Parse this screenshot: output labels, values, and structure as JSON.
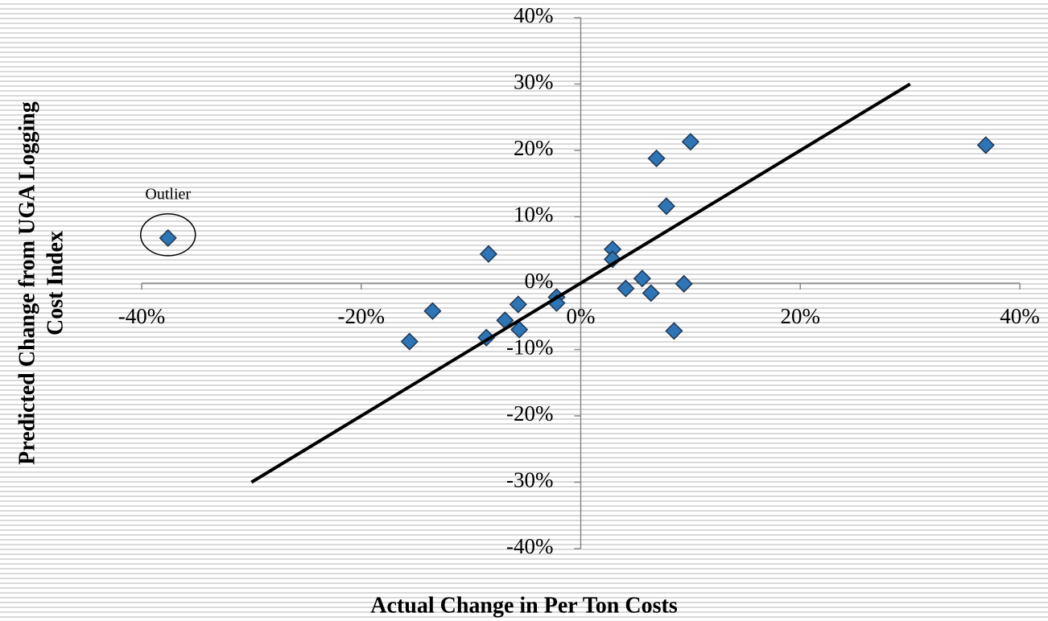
{
  "chart_data": {
    "type": "scatter",
    "x_label": "Actual Change in Per Ton Costs",
    "y_label": [
      "Predicted Change from UGA Logging",
      "Cost Index"
    ],
    "annotation": "Outlier",
    "xlim": [
      -40,
      40
    ],
    "ylim": [
      -40,
      40
    ],
    "xticks": [
      {
        "value": -40,
        "label": "-40%"
      },
      {
        "value": -20,
        "label": "-20%"
      },
      {
        "value": 0,
        "label": "0%"
      },
      {
        "value": 20,
        "label": "20%"
      },
      {
        "value": 40,
        "label": "40%"
      }
    ],
    "yticks": [
      {
        "value": -40,
        "label": "-40%"
      },
      {
        "value": -30,
        "label": "-30%"
      },
      {
        "value": -20,
        "label": "-20%"
      },
      {
        "value": -10,
        "label": "-10%"
      },
      {
        "value": 0,
        "label": "0%"
      },
      {
        "value": 10,
        "label": "10%"
      },
      {
        "value": 20,
        "label": "20%"
      },
      {
        "value": 30,
        "label": "30%"
      },
      {
        "value": 40,
        "label": "40%"
      }
    ],
    "series": [
      {
        "color": "#2e75b6",
        "x": [
          -37.6,
          -8.4,
          -13.5,
          -15.6,
          -8.6,
          -6.9,
          -5.7,
          -5.6,
          -2.2,
          -2.2,
          2.9,
          2.9,
          4.1,
          5.6,
          6.4,
          6.9,
          7.8,
          8.5,
          9.4,
          10.0,
          36.9
        ],
        "values": [
          6.8,
          4.4,
          -4.2,
          -8.8,
          -8.2,
          -5.6,
          -3.2,
          -7.0,
          -2.1,
          -3.0,
          5.1,
          3.6,
          -0.8,
          0.7,
          -1.5,
          18.8,
          11.6,
          -7.2,
          -0.1,
          21.3,
          20.8
        ]
      },
      {
        "color": "#000000",
        "line": true,
        "x": [
          -30,
          30
        ],
        "values": [
          -30,
          30
        ]
      }
    ]
  }
}
